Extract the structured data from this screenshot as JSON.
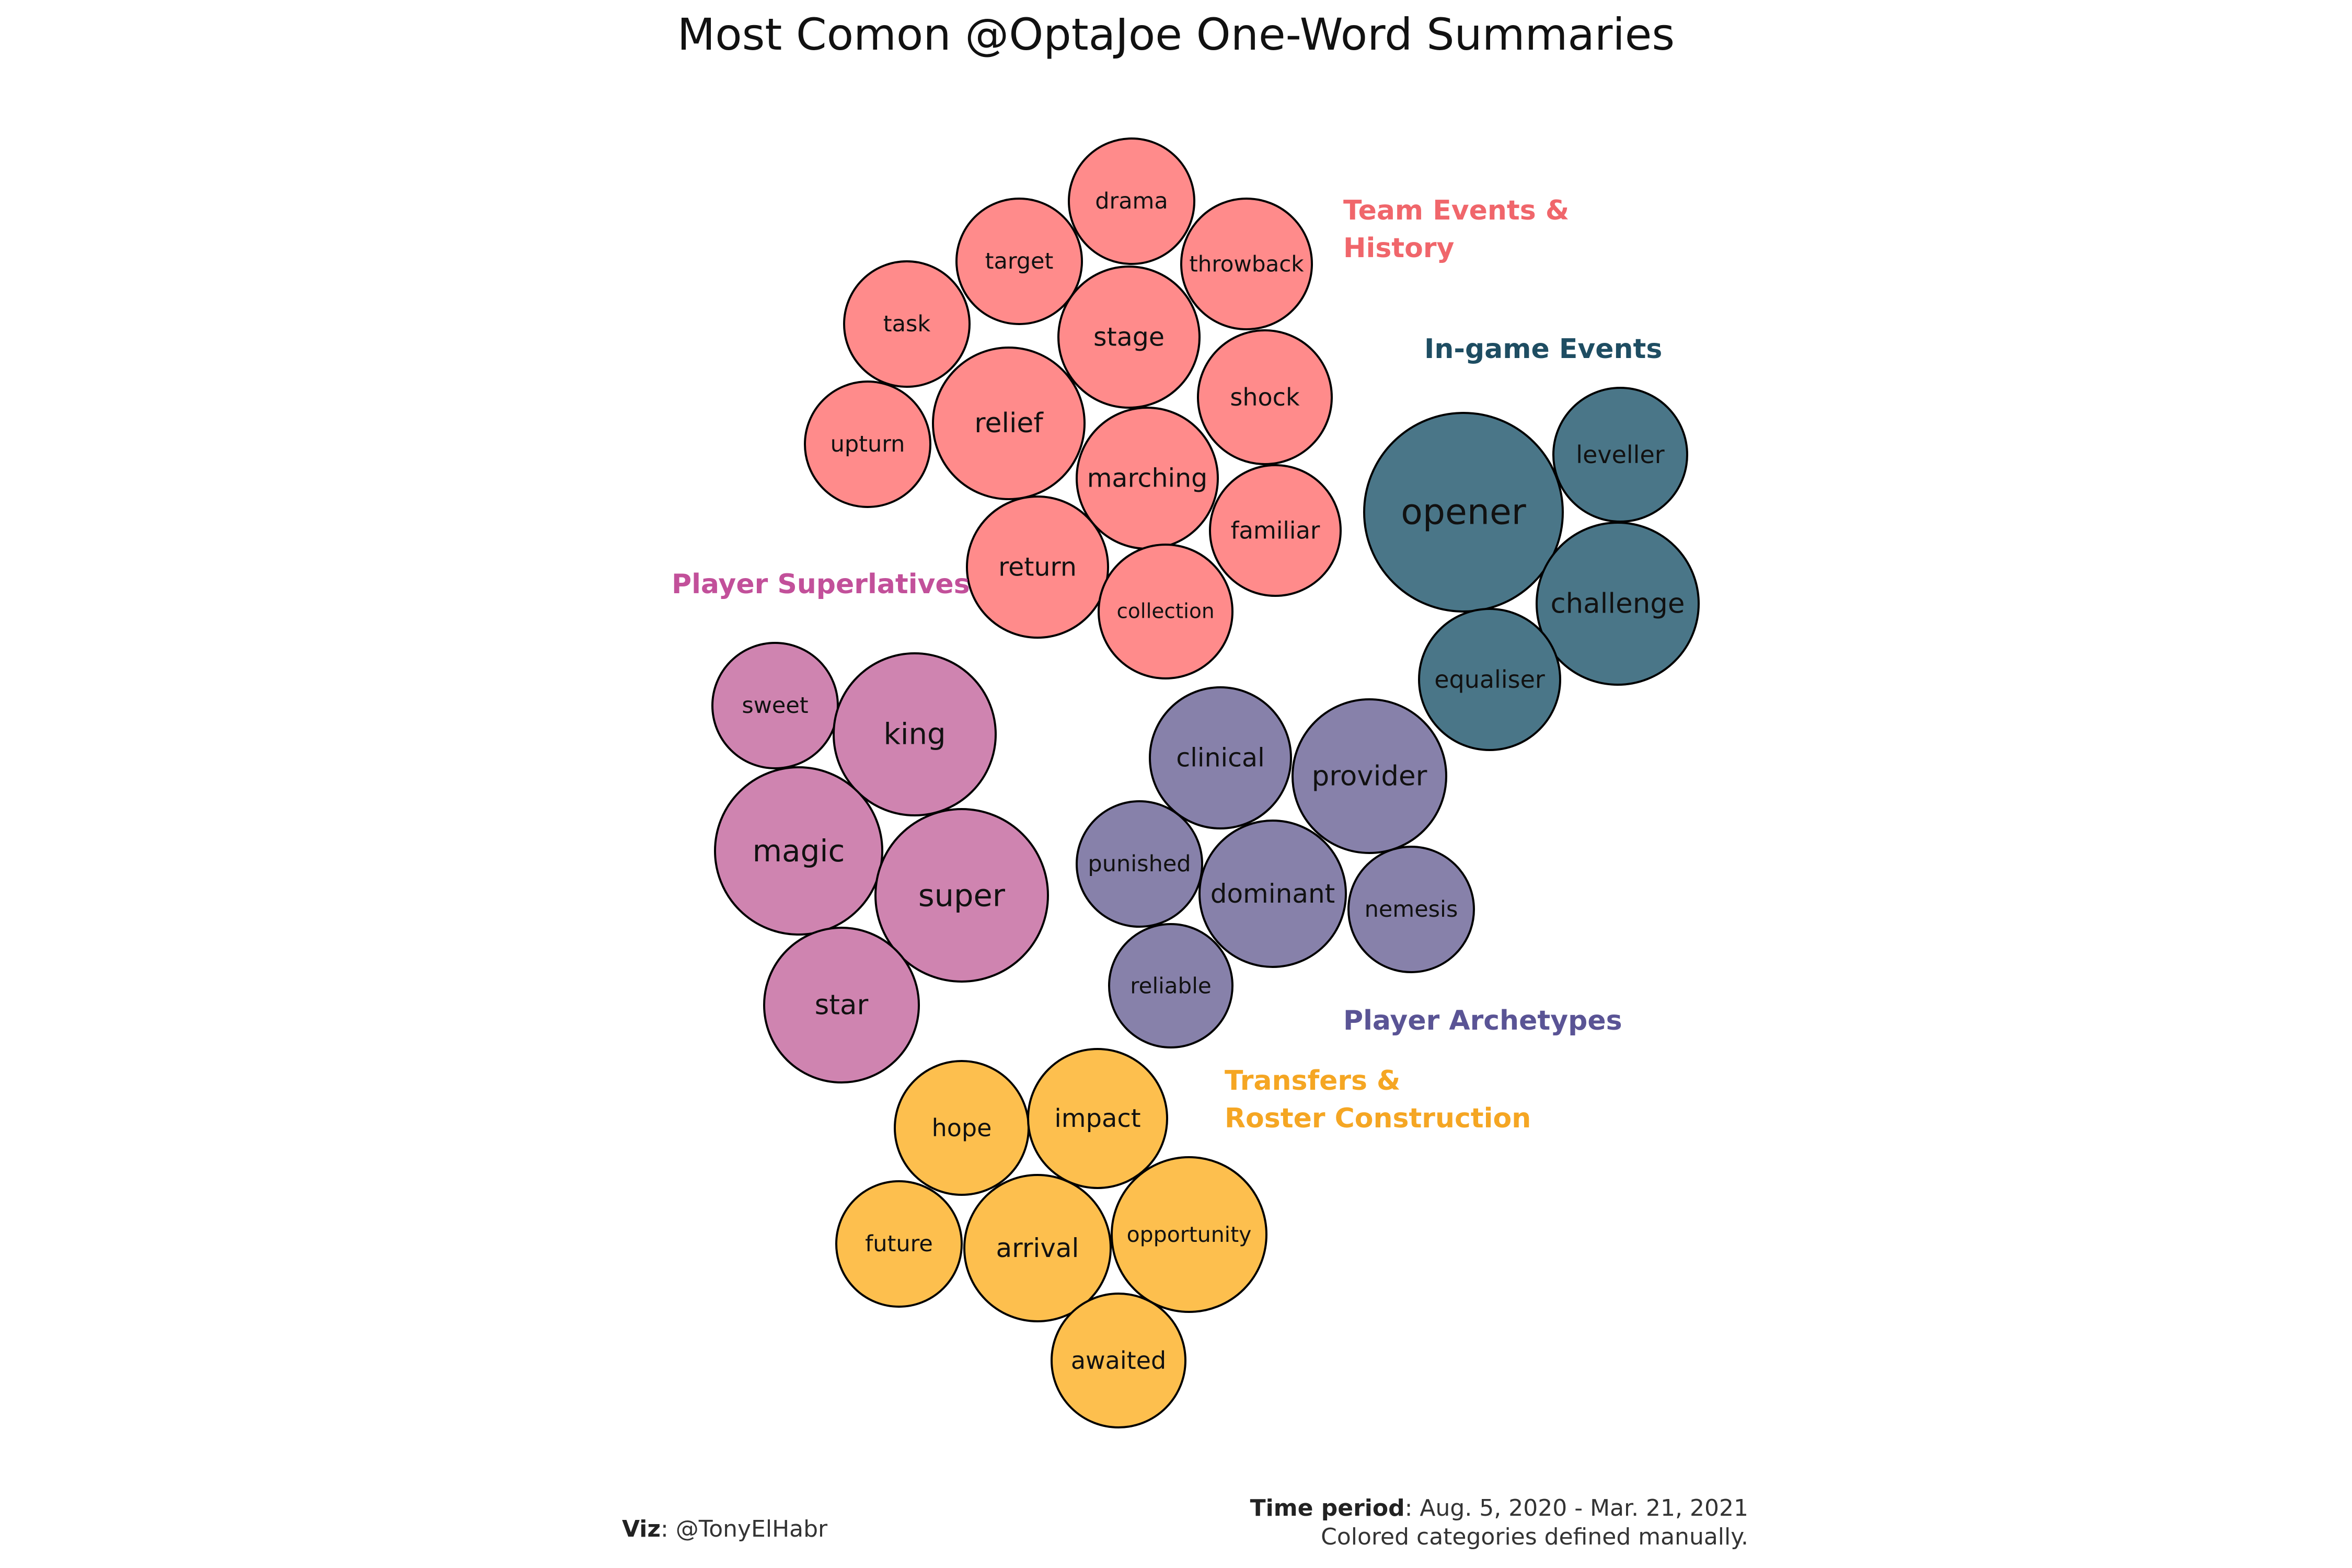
{
  "chart_data": {
    "type": "packed-bubble",
    "title": "Most Comon @OptaJoe One-Word Summaries",
    "groups": [
      {
        "name": "Team Events & History",
        "label_lines": [
          "Team Events &",
          "History"
        ],
        "color": "#FF8B8B",
        "label_color": "#F0666B",
        "words": [
          "drama",
          "target",
          "throwback",
          "task",
          "stage",
          "relief",
          "shock",
          "upturn",
          "marching",
          "familiar",
          "return",
          "collection"
        ]
      },
      {
        "name": "In-game Events",
        "label_lines": [
          "In-game Events"
        ],
        "color": "#4A7688",
        "label_color": "#1E4D62",
        "words": [
          "opener",
          "leveller",
          "challenge",
          "equaliser"
        ]
      },
      {
        "name": "Player Superlatives",
        "label_lines": [
          "Player Superlatives"
        ],
        "color": "#CF84B0",
        "label_color": "#C2509A",
        "words": [
          "sweet",
          "king",
          "magic",
          "super",
          "star"
        ]
      },
      {
        "name": "Player Archetypes",
        "label_lines": [
          "Player Archetypes"
        ],
        "color": "#8781AA",
        "label_color": "#5A5495",
        "words": [
          "clinical",
          "provider",
          "punished",
          "dominant",
          "nemesis",
          "reliable"
        ]
      },
      {
        "name": "Transfers & Roster Construction",
        "label_lines": [
          "Transfers &",
          "Roster Construction"
        ],
        "color": "#FDBF4E",
        "label_color": "#F5A623",
        "words": [
          "hope",
          "impact",
          "future",
          "arrival",
          "opportunity",
          "awaited"
        ]
      }
    ]
  },
  "captions": {
    "viz_label": "Viz",
    "viz_value": ": @TonyElHabr",
    "period_label": "Time period",
    "period_value": ": Aug. 5, 2020 - Mar. 21, 2021",
    "note": "Colored categories defined manually."
  }
}
